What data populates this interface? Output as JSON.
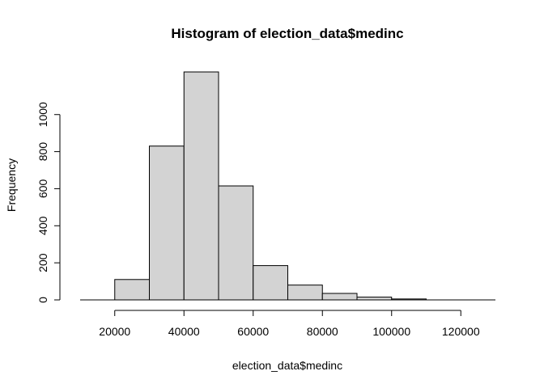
{
  "chart_data": {
    "type": "bar",
    "title": "Histogram of election_data$medinc",
    "xlabel": "election_data$medinc",
    "ylabel": "Frequency",
    "bins": [
      {
        "start": 20000,
        "end": 30000,
        "count": 110
      },
      {
        "start": 30000,
        "end": 40000,
        "count": 830
      },
      {
        "start": 40000,
        "end": 50000,
        "count": 1230
      },
      {
        "start": 50000,
        "end": 60000,
        "count": 615
      },
      {
        "start": 60000,
        "end": 70000,
        "count": 185
      },
      {
        "start": 70000,
        "end": 80000,
        "count": 80
      },
      {
        "start": 80000,
        "end": 90000,
        "count": 35
      },
      {
        "start": 90000,
        "end": 100000,
        "count": 15
      },
      {
        "start": 100000,
        "end": 110000,
        "count": 5
      }
    ],
    "x_ticks": [
      20000,
      40000,
      60000,
      80000,
      100000,
      120000
    ],
    "y_ticks": [
      0,
      200,
      400,
      600,
      800,
      1000
    ],
    "xlim": [
      10000,
      130000
    ],
    "ylim": [
      0,
      1230
    ],
    "colors": {
      "bar_fill": "#d3d3d3",
      "bar_stroke": "#000000"
    },
    "grid": false
  }
}
